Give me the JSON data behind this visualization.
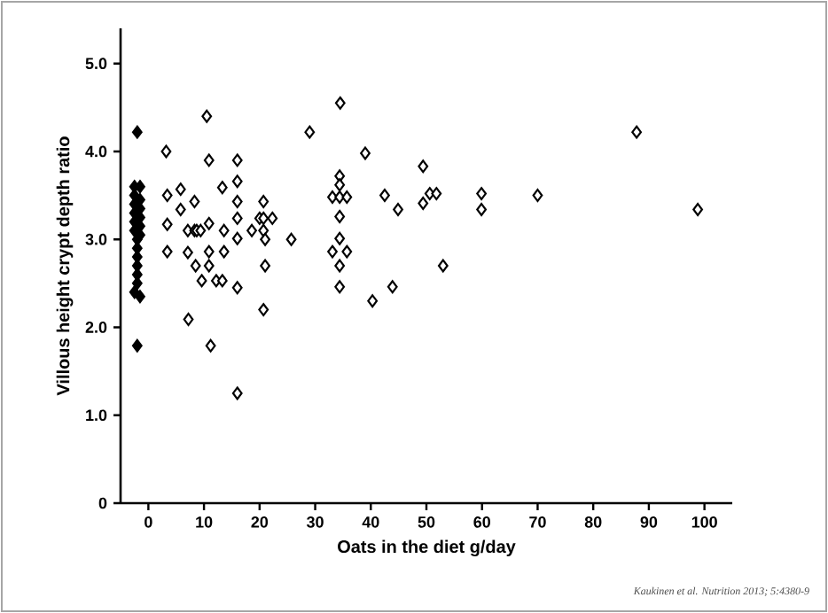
{
  "chart_data": {
    "type": "scatter",
    "xlabel": "Oats in the diet g/day",
    "ylabel": "Villous height crypt depth ratio",
    "xlim": [
      -5,
      105
    ],
    "xticks": [
      0,
      10,
      20,
      30,
      40,
      50,
      60,
      70,
      80,
      90,
      100
    ],
    "ylim": [
      0,
      5.4
    ],
    "yticks": [
      0,
      {
        "value": 1,
        "label": "1.0"
      },
      {
        "value": 2,
        "label": "2.0"
      },
      {
        "value": 3,
        "label": "3.0"
      },
      {
        "value": 4,
        "label": "4.0"
      },
      {
        "value": 5,
        "label": "5.0"
      }
    ],
    "marker": "diamond",
    "annotations": [
      "Kaukinen et al. Nutrition 2013; 5:4380-9"
    ],
    "series": [
      {
        "color": "#000000",
        "x": [
          -2,
          -2.5,
          -1.5,
          -2.5,
          -1.5,
          -2.5,
          -1.5,
          -2.5,
          -1.5,
          -2.5,
          -1.5,
          -2.5,
          -1.5,
          -2,
          -2,
          -2,
          -2,
          -2,
          -2,
          -2.5,
          -1.5,
          -2
        ],
        "values": [
          4.22,
          3.6,
          3.6,
          3.5,
          3.45,
          3.4,
          3.35,
          3.3,
          3.25,
          3.2,
          3.15,
          3.1,
          3.05,
          3.0,
          2.9,
          2.8,
          2.7,
          2.6,
          2.5,
          2.4,
          2.35,
          1.79
        ]
      },
      {
        "color": "#ffffff",
        "x": [
          3.2,
          3.4,
          3.4,
          3.4,
          5.8,
          5.8,
          7.1,
          7.1,
          7.2,
          8.3,
          8.3,
          8.7,
          9.4,
          8.5,
          9.6,
          10.9,
          10.9,
          10.9,
          10.9,
          11.2,
          12.2,
          13.3,
          13.3,
          13.6,
          13.6,
          16,
          16,
          16,
          16,
          16,
          16,
          16,
          18.6,
          20,
          20.7,
          20.7,
          20.7,
          21,
          21,
          20.7,
          22.3,
          25.7,
          10.5,
          29,
          34.5,
          39,
          49.4,
          34.4,
          34.4,
          33.1,
          34.4,
          35.7,
          34.4,
          34.4,
          33.1,
          35.7,
          34.4,
          34.4,
          40.3,
          43.9,
          42.5,
          44.9,
          49.4,
          50.6,
          51.8,
          53,
          59.9,
          59.9,
          70,
          87.8,
          98.8
        ],
        "values": [
          4.0,
          3.5,
          3.17,
          2.86,
          3.57,
          3.34,
          3.1,
          2.85,
          2.09,
          3.43,
          3.1,
          3.1,
          3.1,
          2.7,
          2.53,
          3.9,
          3.18,
          2.86,
          2.7,
          1.79,
          2.53,
          2.53,
          3.59,
          2.86,
          3.1,
          3.9,
          3.66,
          3.43,
          3.24,
          3.01,
          2.45,
          1.25,
          3.1,
          3.24,
          3.43,
          3.24,
          3.1,
          3.0,
          2.7,
          2.2,
          3.24,
          3.0,
          4.4,
          4.22,
          4.55,
          3.98,
          3.83,
          3.72,
          3.62,
          3.48,
          3.48,
          3.48,
          3.26,
          3.01,
          2.86,
          2.86,
          2.7,
          2.46,
          2.3,
          2.46,
          3.5,
          3.34,
          3.41,
          3.52,
          3.52,
          2.7,
          3.52,
          3.34,
          3.5,
          4.22,
          3.34
        ]
      }
    ]
  }
}
